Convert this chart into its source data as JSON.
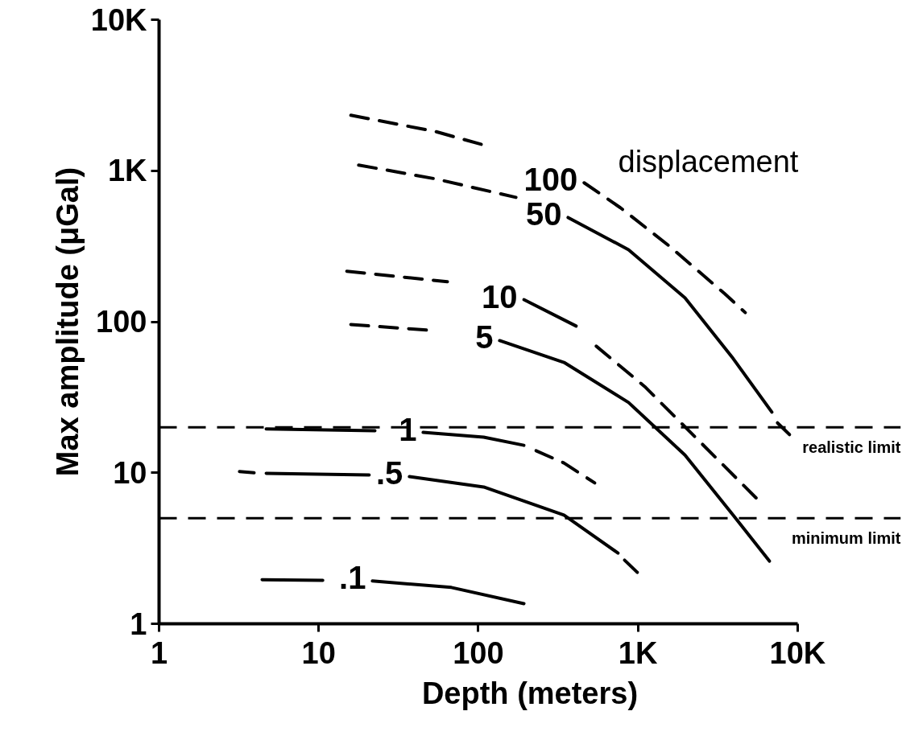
{
  "chart_data": {
    "type": "line",
    "xlabel": "Depth (meters)",
    "ylabel": "Max amplitude (μGal)",
    "log": "xy",
    "grid": false,
    "marker": "none",
    "xlim": [
      1,
      10000
    ],
    "ylim": [
      1,
      10000
    ],
    "xticks": [
      1,
      10,
      100,
      {
        "value": 1000,
        "label": "1K"
      },
      {
        "value": 10000,
        "label": "10K"
      }
    ],
    "yticks": [
      1,
      10,
      100,
      {
        "value": 1000,
        "label": "1K"
      },
      {
        "value": 10000,
        "label": "10K"
      }
    ],
    "series": [
      {
        "color": "#000000",
        "line_style": "dashed",
        "x": [
          15.9,
          53.7,
          108
        ],
        "values": [
          2330,
          1820,
          1480
        ]
      },
      {
        "name": "100",
        "color": "#000000",
        "line_style": "dashed",
        "x": [
          460,
          776,
          1560,
          3500,
          4700
        ],
        "values": [
          832,
          569,
          319,
          153,
          115
        ]
      },
      {
        "color": "#000000",
        "line_style": "dashed",
        "x": [
          17.8,
          53.7,
          172
        ],
        "values": [
          1090,
          884,
          666
        ]
      },
      {
        "name": "50",
        "color": "#000000",
        "line_style": "solid",
        "x": [
          365,
          873,
          1970,
          3950,
          6900
        ],
        "values": [
          490,
          300,
          144,
          57,
          25.2
        ]
      },
      {
        "color": "#000000",
        "line_style": "dashed",
        "x": [
          7480,
          8900
        ],
        "values": [
          21.4,
          17.9
        ]
      },
      {
        "color": "#000000",
        "line_style": "dashed",
        "x": [
          15.0,
          64
        ],
        "values": [
          216,
          184
        ]
      },
      {
        "name": "10",
        "color": "#000000",
        "line_style": "solid",
        "x": [
          193,
          410
        ],
        "values": [
          140,
          93.6
        ]
      },
      {
        "color": "#000000",
        "line_style": "dashed",
        "x": [
          548,
          1100,
          2480,
          5790
        ],
        "values": [
          68.9,
          37.3,
          15.8,
          6.45
        ]
      },
      {
        "color": "#000000",
        "line_style": "dashed",
        "x": [
          15.9,
          47.8
        ],
        "values": [
          95.9,
          88
        ]
      },
      {
        "name": "5",
        "color": "#000000",
        "line_style": "solid",
        "x": [
          136,
          344,
          873,
          1970,
          3950,
          6660
        ],
        "values": [
          75,
          53.8,
          29.2,
          13.1,
          5.24,
          2.6
        ]
      },
      {
        "color": "#000000",
        "line_style": "solid",
        "x": [
          4.69,
          22.5
        ],
        "values": [
          19.5,
          19.0
        ]
      },
      {
        "name": "1",
        "color": "#000000",
        "line_style": "solid",
        "x": [
          45.1,
          108,
          193
        ],
        "values": [
          18.5,
          17.2,
          15.2
        ]
      },
      {
        "color": "#000000",
        "line_style": "dashed",
        "x": [
          230,
          344,
          536
        ],
        "values": [
          14.0,
          11.6,
          8.56
        ]
      },
      {
        "color": "#000000",
        "line_style": "dashed",
        "x": [
          3.19,
          3.94
        ],
        "values": [
          10.2,
          10.0
        ]
      },
      {
        "color": "#000000",
        "line_style": "solid",
        "x": [
          4.69,
          20.7
        ],
        "values": [
          9.92,
          9.67
        ]
      },
      {
        "name": ".5",
        "color": "#000000",
        "line_style": "solid",
        "x": [
          37.0,
          108,
          344,
          750
        ],
        "values": [
          9.44,
          8.05,
          5.24,
          2.94
        ]
      },
      {
        "color": "#000000",
        "line_style": "dashed",
        "x": [
          824,
          1000
        ],
        "values": [
          2.64,
          2.17
        ]
      },
      {
        "color": "#000000",
        "line_style": "solid",
        "x": [
          4.42,
          10.6
        ],
        "values": [
          1.96,
          1.94
        ]
      },
      {
        "name": ".1",
        "color": "#000000",
        "line_style": "solid",
        "x": [
          21.7,
          67.8,
          193
        ],
        "values": [
          1.92,
          1.74,
          1.36
        ]
      }
    ],
    "ref_lines": [
      {
        "axis": "y",
        "value": 20,
        "color": "#000000",
        "line_style": "dashed",
        "label": "realistic limit"
      },
      {
        "axis": "y",
        "value": 5,
        "color": "#000000",
        "line_style": "dashed",
        "label": "minimum limit"
      }
    ],
    "annotations": [
      "displacement"
    ]
  }
}
